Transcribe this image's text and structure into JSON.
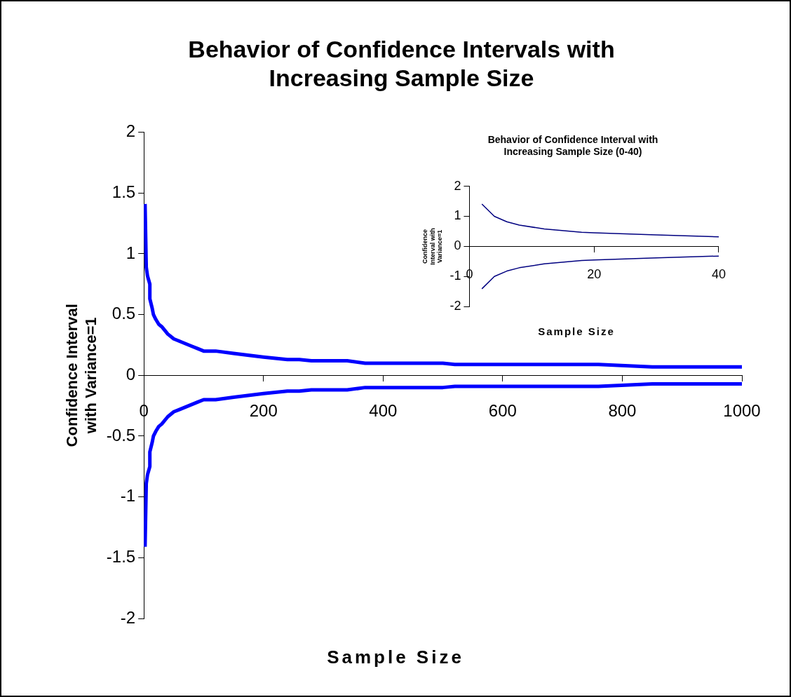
{
  "chart_data": [
    {
      "type": "line",
      "title": "Behavior of Confidence Intervals with Increasing Sample Size",
      "xlabel": "Sample Size",
      "ylabel": "Confidence Interval with Variance=1",
      "x": [
        2,
        4,
        6,
        10,
        10,
        14,
        16,
        20,
        25,
        30,
        40,
        50,
        60,
        70,
        80,
        90,
        100,
        120,
        150,
        200,
        220,
        240,
        260,
        280,
        340,
        370,
        400,
        500,
        520,
        760,
        850,
        1000
      ],
      "series": [
        {
          "color": "#0000ff",
          "values": [
            1.41,
            0.89,
            0.82,
            0.75,
            0.63,
            0.55,
            0.5,
            0.46,
            0.42,
            0.4,
            0.34,
            0.3,
            0.28,
            0.26,
            0.24,
            0.22,
            0.2,
            0.2,
            0.18,
            0.15,
            0.14,
            0.13,
            0.13,
            0.12,
            0.12,
            0.1,
            0.1,
            0.1,
            0.09,
            0.09,
            0.07,
            0.07
          ]
        },
        {
          "color": "#0000ff",
          "values": [
            -1.41,
            -0.89,
            -0.82,
            -0.75,
            -0.63,
            -0.55,
            -0.5,
            -0.46,
            -0.42,
            -0.4,
            -0.34,
            -0.3,
            -0.28,
            -0.26,
            -0.24,
            -0.22,
            -0.2,
            -0.2,
            -0.18,
            -0.15,
            -0.14,
            -0.13,
            -0.13,
            -0.12,
            -0.12,
            -0.1,
            -0.1,
            -0.1,
            -0.09,
            -0.09,
            -0.07,
            -0.07
          ]
        }
      ],
      "xlim": [
        0,
        1000
      ],
      "xticks": [
        0,
        200,
        400,
        600,
        800,
        1000
      ],
      "ylim": [
        -2,
        2
      ],
      "yticks": [
        -2,
        -1.5,
        -1,
        -0.5,
        0,
        0.5,
        1,
        1.5,
        2
      ]
    },
    {
      "type": "line",
      "title": "Behavior of Confidence Interval with Increasing Sample Size (0-40)",
      "xlabel": "Sample Size",
      "ylabel": "Confidence Interval with Variance=1",
      "x": [
        2,
        4,
        6,
        8,
        12,
        18,
        20,
        30,
        40
      ],
      "series": [
        {
          "color": "#000080",
          "values": [
            1.41,
            1.0,
            0.82,
            0.71,
            0.58,
            0.47,
            0.45,
            0.38,
            0.32
          ]
        },
        {
          "color": "#000080",
          "values": [
            -1.41,
            -1.0,
            -0.82,
            -0.71,
            -0.58,
            -0.47,
            -0.45,
            -0.38,
            -0.32
          ]
        }
      ],
      "xlim": [
        0,
        40
      ],
      "xticks": [
        0,
        20,
        40
      ],
      "ylim": [
        -2,
        2
      ],
      "yticks": [
        -2,
        -1,
        0,
        1,
        2
      ]
    }
  ]
}
